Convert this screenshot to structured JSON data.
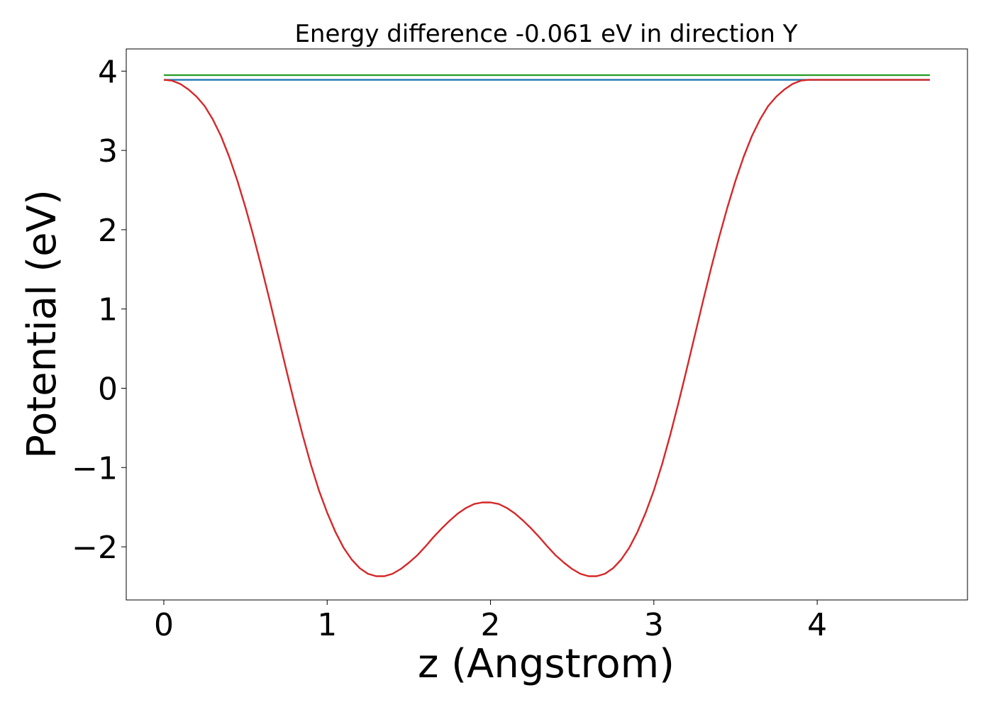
{
  "chart_data": {
    "type": "line",
    "title": "Energy difference -0.061 eV in direction Y",
    "xlabel": "z (Angstrom)",
    "ylabel": "Potential (eV)",
    "xlim": [
      -0.23,
      4.92
    ],
    "ylim": [
      -2.67,
      4.28
    ],
    "xticks": [
      0,
      1,
      2,
      3,
      4
    ],
    "xtick_labels": [
      "0",
      "1",
      "2",
      "3",
      "4"
    ],
    "yticks": [
      -2,
      -1,
      0,
      1,
      2,
      3,
      4
    ],
    "ytick_labels": [
      "−2",
      "−1",
      "0",
      "1",
      "2",
      "3",
      "4"
    ],
    "grid": false,
    "legend": "none",
    "series": [
      {
        "color": "#2ca02c",
        "x": [
          0.0,
          4.69
        ],
        "y": [
          3.95,
          3.95
        ]
      },
      {
        "color": "#1f77b4",
        "x": [
          0.0,
          4.69
        ],
        "y": [
          3.89,
          3.89
        ]
      },
      {
        "color": "#d62728",
        "x": [
          0.0,
          0.05,
          0.1,
          0.15,
          0.2,
          0.25,
          0.3,
          0.35,
          0.4,
          0.45,
          0.5,
          0.55,
          0.6,
          0.65,
          0.7,
          0.75,
          0.8,
          0.85,
          0.9,
          0.95,
          1.0,
          1.05,
          1.1,
          1.15,
          1.2,
          1.25,
          1.3,
          1.35,
          1.4,
          1.45,
          1.5,
          1.55,
          1.6,
          1.65,
          1.7,
          1.75,
          1.8,
          1.85,
          1.9,
          1.95,
          2.0,
          2.05,
          2.1,
          2.15,
          2.2,
          2.25,
          2.3,
          2.35,
          2.4,
          2.45,
          2.5,
          2.55,
          2.6,
          2.65,
          2.7,
          2.75,
          2.8,
          2.85,
          2.9,
          2.95,
          3.0,
          3.05,
          3.1,
          3.15,
          3.2,
          3.25,
          3.3,
          3.35,
          3.4,
          3.45,
          3.5,
          3.55,
          3.6,
          3.65,
          3.7,
          3.75,
          3.8,
          3.85,
          3.9,
          3.95,
          4.0,
          4.05,
          4.1,
          4.15,
          4.2,
          4.25,
          4.3,
          4.35,
          4.4,
          4.45,
          4.5,
          4.55,
          4.6,
          4.65,
          4.69
        ],
        "y": [
          3.89,
          3.88,
          3.84,
          3.77,
          3.68,
          3.56,
          3.39,
          3.18,
          2.92,
          2.62,
          2.28,
          1.91,
          1.51,
          1.09,
          0.66,
          0.23,
          -0.19,
          -0.59,
          -0.96,
          -1.29,
          -1.57,
          -1.81,
          -2.01,
          -2.16,
          -2.27,
          -2.34,
          -2.37,
          -2.37,
          -2.34,
          -2.28,
          -2.2,
          -2.11,
          -2.0,
          -1.88,
          -1.77,
          -1.67,
          -1.58,
          -1.51,
          -1.46,
          -1.44,
          -1.44,
          -1.46,
          -1.51,
          -1.58,
          -1.67,
          -1.77,
          -1.88,
          -2.0,
          -2.11,
          -2.2,
          -2.28,
          -2.34,
          -2.37,
          -2.37,
          -2.34,
          -2.27,
          -2.16,
          -2.01,
          -1.81,
          -1.57,
          -1.29,
          -0.96,
          -0.59,
          -0.19,
          0.23,
          0.66,
          1.09,
          1.51,
          1.91,
          2.28,
          2.62,
          2.92,
          3.18,
          3.39,
          3.56,
          3.68,
          3.77,
          3.84,
          3.88,
          3.89,
          3.89,
          3.89,
          3.89,
          3.89,
          3.89,
          3.89,
          3.89,
          3.89,
          3.89,
          3.89,
          3.89,
          3.89,
          3.89,
          3.89,
          3.89
        ]
      }
    ]
  }
}
